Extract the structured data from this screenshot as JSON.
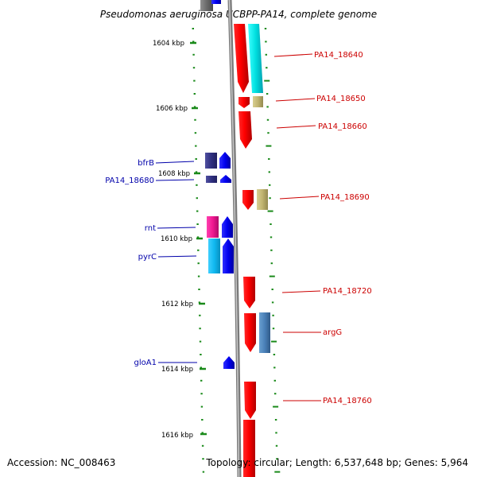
{
  "title": "Pseudomonas aeruginosa UCBPP-PA14, complete genome",
  "footer": {
    "accession": "Accession: NC_008463",
    "topology": "Topology: circular; Length: 6,537,648 bp; Genes: 5,964"
  },
  "colors": {
    "backbone": "#8a8a8a",
    "ruler_dots": "#1a8a1a",
    "left_label": "#0000aa",
    "right_label": "#cc0000"
  },
  "kbp_ticks": [
    {
      "label": "1604 kbp"
    },
    {
      "label": "1606 kbp"
    },
    {
      "label": "1608 kbp"
    },
    {
      "label": "1610 kbp"
    },
    {
      "label": "1612 kbp"
    },
    {
      "label": "1614 kbp"
    },
    {
      "label": "1616 kbp"
    }
  ],
  "left_genes": [
    {
      "name": "bfrB"
    },
    {
      "name": "PA14_18680"
    },
    {
      "name": "rnt"
    },
    {
      "name": "pyrC"
    },
    {
      "name": "gloA1"
    }
  ],
  "right_genes": [
    {
      "name": "PA14_18640"
    },
    {
      "name": "PA14_18650"
    },
    {
      "name": "PA14_18660"
    },
    {
      "name": "PA14_18690"
    },
    {
      "name": "PA14_18720"
    },
    {
      "name": "argG"
    },
    {
      "name": "PA14_18760"
    }
  ]
}
